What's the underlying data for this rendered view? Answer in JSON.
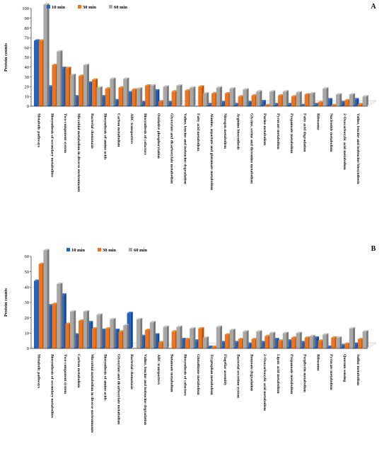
{
  "colors": {
    "10 min": "#1f62c4",
    "30 min": "#f0731a",
    "60 min": "#a8a8a8"
  },
  "chart_data": [
    {
      "type": "bar",
      "panel_label": "A",
      "ylabel": "Protein counts",
      "ylim": [
        0,
        100
      ],
      "yticks": [
        0,
        10,
        20,
        30,
        40,
        50,
        60,
        70,
        80,
        90,
        100
      ],
      "legend_placement": "top-left",
      "categories": [
        "Metabolic pathways",
        "Biosynthesis of secondary metabolites",
        "Two-component system",
        "Microbial metabolism in diverse environments",
        "Bacterial chemotaxis",
        "Biosynthesis of amino acids",
        "Carbon metabolism",
        "ABC transporters",
        "Biosynthesis of cofactors",
        "Oxidative phosphorylation",
        "Glyoxylate and dicarboxylate metabolism",
        "Valine, leucine and isoleucine degradation",
        "Fatty acid metabolism",
        "Alanine, aspartate and glutamate metabolism",
        "Nitrogen metabolism",
        "Arginine biosynthesis",
        "Glycine, serine and threonine metabolism",
        "Purine metabolism",
        "Pyruvate metabolism",
        "Propanoate metabolism",
        "Fatty acid degradation",
        "Ribosome",
        "Nucleotide metabolism",
        "2-Oxocarboxylic acid metabolism",
        "Valine, leucine and isoleucine biosynthesis"
      ],
      "series": [
        {
          "name": "10 min",
          "values": [
            67,
            20,
            39,
            10,
            24,
            10,
            6,
            14,
            4,
            16,
            4,
            0,
            0,
            2,
            4,
            2,
            4,
            5,
            2,
            2,
            1,
            2,
            7,
            4,
            7
          ]
        },
        {
          "name": "30 min",
          "values": [
            67,
            42,
            39,
            31,
            27,
            18,
            19,
            17,
            21,
            5,
            15,
            16,
            20,
            13,
            13,
            10,
            11,
            1,
            11,
            10,
            12,
            4,
            1,
            6,
            2
          ]
        },
        {
          "name": "60 min",
          "values": [
            104,
            56,
            32,
            42,
            19,
            28,
            28,
            18,
            21,
            20,
            21,
            19,
            13,
            19,
            18,
            17,
            15,
            15,
            15,
            14,
            13,
            18,
            12,
            12,
            10
          ]
        }
      ]
    },
    {
      "type": "bar",
      "panel_label": "B",
      "ylabel": "Protein counts",
      "ylim": [
        0,
        60
      ],
      "yticks": [
        0,
        10,
        20,
        30,
        40,
        50,
        60
      ],
      "legend_placement": "top-left",
      "categories": [
        "Metabolic pathways",
        "Biosynthesis of secondary metabolites",
        "Two-component system",
        "Carbon metabolism",
        "Microbial metabolism in diverse environments",
        "Biosynthesis of amino acids",
        "Glyoxylate and dicarboxylate metabolism",
        "Bacterial chemotaxis",
        "Valine, leucine and isoleucine degradation",
        "ABC transporters",
        "Butanoate metabolism",
        "Biosynthesis of cofactors",
        "Glutathione metabolism",
        "Tryptophan metabolism",
        "Flagellar assembly",
        "Bacterial secretion system",
        "Benzoate degradation",
        "2-Oxocarboxylic acid metabolism",
        "Lipoic acid metabolism",
        "Propanoate metabolism",
        "Porphyrin metabolism",
        "Ribosome",
        "Pyruvate metabolism",
        "Quorum sensing",
        "Sulfur metabolism"
      ],
      "series": [
        {
          "name": "10 min",
          "values": [
            44,
            28,
            35,
            9,
            17,
            12,
            12,
            23,
            8,
            9,
            0,
            6,
            5,
            1,
            4,
            4,
            3,
            4,
            6,
            5,
            4,
            7,
            1,
            2,
            3
          ]
        },
        {
          "name": "30 min",
          "values": [
            55,
            29,
            16,
            18,
            13,
            13,
            11,
            0,
            12,
            4,
            11,
            6,
            13,
            1,
            9,
            6,
            6,
            8,
            5,
            7,
            7,
            5,
            7,
            3,
            6
          ]
        },
        {
          "name": "60 min",
          "values": [
            64,
            42,
            24,
            24,
            22,
            19,
            15,
            19,
            17,
            14,
            14,
            13,
            7,
            14,
            12,
            11,
            11,
            10,
            10,
            10,
            8,
            9,
            7,
            13,
            11
          ]
        }
      ]
    }
  ]
}
